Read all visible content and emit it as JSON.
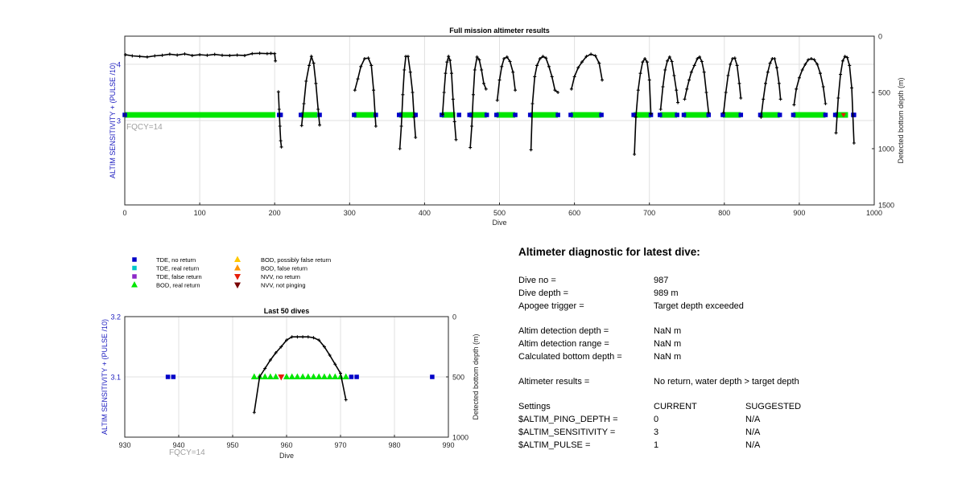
{
  "colors": {
    "axis": "#262626",
    "grid": "#e0e0e0",
    "left_axis_label": "#2020c0",
    "fqcy_label": "#a0a0a0",
    "trace": "#000000",
    "tde_no_return": "#0000c8",
    "tde_real_return": "#00c8c8",
    "tde_false_return": "#8c28c8",
    "bod_real_return": "#00e600",
    "bod_possibly_false": "#ffc800",
    "bod_false_return": "#ff9600",
    "nvv_no_return": "#e61e0a",
    "nvv_not_pinging": "#780000"
  },
  "chart_data": [
    {
      "type": "scatter",
      "title": "Full mission altimeter results",
      "xlabel": "Dive",
      "ylabel_left": "ALTIM SENSITIVITY + (PULSE /10)",
      "ylabel_right": "Detected bottom depth (m)",
      "annotation": "FQCY=14",
      "xlim": [
        0,
        1000
      ],
      "xticks": [
        0,
        100,
        200,
        300,
        400,
        500,
        600,
        700,
        800,
        900,
        1000
      ],
      "ylim_left": [
        1.5,
        4.5
      ],
      "yticks_left": [
        3,
        4
      ],
      "ylim_right": [
        1500,
        0
      ],
      "yticks_right": [
        0,
        500,
        1000,
        1500
      ],
      "grid": true,
      "marker_level": 3.1,
      "green_segments": [
        [
          0,
          201
        ],
        [
          235,
          257
        ],
        [
          306,
          335
        ],
        [
          366,
          388
        ],
        [
          423,
          441
        ],
        [
          460,
          483
        ],
        [
          496,
          521
        ],
        [
          541,
          578
        ],
        [
          595,
          636
        ],
        [
          679,
          702
        ],
        [
          714,
          737
        ],
        [
          746,
          779
        ],
        [
          798,
          822
        ],
        [
          848,
          874
        ],
        [
          892,
          935
        ],
        [
          948,
          965
        ]
      ],
      "blue_dives": [
        0,
        206,
        208,
        235,
        260,
        306,
        335,
        366,
        388,
        423,
        446,
        460,
        483,
        496,
        521,
        541,
        578,
        595,
        636,
        679,
        702,
        714,
        737,
        746,
        779,
        798,
        822,
        848,
        874,
        892,
        935,
        948,
        972,
        973
      ],
      "red_dives": [
        959
      ],
      "segments": [
        {
          "dive": [
            1,
            10,
            20,
            30,
            40,
            50,
            60,
            70,
            80,
            90,
            100,
            110,
            120,
            130,
            140,
            150,
            160,
            170,
            180,
            190,
            195,
            200,
            201
          ],
          "depth": [
            165,
            175,
            180,
            185,
            175,
            170,
            160,
            168,
            158,
            172,
            165,
            170,
            162,
            170,
            172,
            168,
            172,
            155,
            152,
            155,
            153,
            155,
            220
          ]
        },
        {
          "dive": [
            205,
            206,
            207,
            208,
            209
          ],
          "depth": [
            495,
            650,
            800,
            930,
            985
          ]
        },
        {
          "dive": [
            236,
            239,
            242,
            246,
            249,
            252,
            255,
            258,
            260
          ],
          "depth": [
            795,
            600,
            400,
            260,
            180,
            240,
            420,
            650,
            790
          ]
        },
        {
          "dive": [
            307,
            311,
            315,
            320,
            325,
            329,
            332,
            335
          ],
          "depth": [
            480,
            380,
            270,
            200,
            195,
            260,
            480,
            800
          ]
        },
        {
          "dive": [
            367,
            369,
            371,
            373,
            375,
            378,
            381,
            384,
            386,
            388
          ],
          "depth": [
            1000,
            800,
            520,
            300,
            180,
            180,
            320,
            500,
            720,
            900
          ]
        },
        {
          "dive": [
            424,
            426,
            428,
            430,
            432,
            434,
            436,
            438,
            440,
            442
          ],
          "depth": [
            695,
            500,
            330,
            230,
            180,
            215,
            330,
            560,
            760,
            920
          ]
        },
        {
          "dive": [
            461,
            463,
            465,
            467,
            470,
            473,
            476,
            479,
            482
          ],
          "depth": [
            990,
            800,
            520,
            300,
            185,
            210,
            300,
            420,
            470
          ]
        },
        {
          "dive": [
            497,
            500,
            503,
            506,
            510,
            514,
            518,
            521
          ],
          "depth": [
            570,
            390,
            270,
            200,
            185,
            225,
            320,
            480
          ]
        },
        {
          "dive": [
            542,
            544,
            547,
            550,
            554,
            558,
            562,
            566,
            570,
            574,
            578
          ],
          "depth": [
            1010,
            600,
            360,
            260,
            200,
            180,
            195,
            270,
            360,
            480,
            500
          ]
        },
        {
          "dive": [
            596,
            600,
            605,
            610,
            616,
            622,
            628,
            633,
            637
          ],
          "depth": [
            470,
            360,
            280,
            230,
            180,
            160,
            175,
            240,
            390
          ]
        },
        {
          "dive": [
            680,
            682,
            685,
            688,
            691,
            694,
            697,
            700,
            702
          ],
          "depth": [
            1050,
            720,
            480,
            330,
            230,
            200,
            230,
            390,
            690
          ]
        },
        {
          "dive": [
            715,
            718,
            721,
            724,
            727,
            730,
            733,
            736,
            738
          ],
          "depth": [
            650,
            450,
            300,
            220,
            185,
            225,
            350,
            480,
            590
          ]
        },
        {
          "dive": [
            747,
            750,
            753,
            756,
            760,
            764,
            767,
            770,
            773,
            776,
            779
          ],
          "depth": [
            560,
            470,
            390,
            320,
            260,
            200,
            185,
            225,
            320,
            500,
            680
          ]
        },
        {
          "dive": [
            799,
            802,
            805,
            808,
            811,
            814,
            817,
            820,
            822
          ],
          "depth": [
            680,
            500,
            350,
            250,
            200,
            195,
            260,
            420,
            550
          ]
        },
        {
          "dive": [
            849,
            852,
            855,
            858,
            861,
            864,
            867,
            870,
            873,
            875
          ],
          "depth": [
            720,
            560,
            420,
            320,
            240,
            200,
            200,
            280,
            420,
            560
          ]
        },
        {
          "dive": [
            893,
            896,
            900,
            904,
            908,
            912,
            916,
            920,
            924,
            928,
            932,
            935
          ],
          "depth": [
            610,
            470,
            370,
            300,
            250,
            210,
            200,
            210,
            250,
            330,
            450,
            600
          ]
        },
        {
          "dive": [
            949,
            952,
            955,
            958,
            961,
            964,
            967,
            970,
            973
          ],
          "depth": [
            860,
            550,
            340,
            220,
            180,
            190,
            260,
            460,
            950
          ]
        }
      ]
    },
    {
      "type": "scatter",
      "title": "Last 50 dives",
      "xlabel": "Dive",
      "ylabel_left": "ALTIM SENSITIVITY + (PULSE /10)",
      "ylabel_right": "Detected bottom depth (m)",
      "annotation": "FQCY=14",
      "xlim": [
        930,
        990
      ],
      "xticks": [
        930,
        940,
        950,
        960,
        970,
        980,
        990
      ],
      "ylim_left": [
        3.0,
        3.2
      ],
      "yticks_left": [
        3.1,
        3.2
      ],
      "ylim_right": [
        1000,
        0
      ],
      "yticks_right": [
        0,
        500,
        1000
      ],
      "grid": true,
      "marker_level": 3.1,
      "blue_dives": [
        938,
        939,
        972,
        973,
        987
      ],
      "green_dives": [
        954,
        955,
        956,
        957,
        958,
        960,
        961,
        962,
        963,
        964,
        965,
        966,
        967,
        968,
        969,
        970,
        971
      ],
      "red_dives": [
        959
      ],
      "curve": {
        "dive": [
          954,
          955,
          956,
          957,
          958,
          959,
          960,
          961,
          962,
          963,
          964,
          965,
          966,
          967,
          968,
          969,
          970,
          971
        ],
        "depth": [
          795,
          500,
          430,
          360,
          300,
          250,
          195,
          168,
          168,
          168,
          168,
          175,
          195,
          250,
          320,
          395,
          470,
          690
        ]
      }
    }
  ],
  "legend": {
    "col1": [
      {
        "label": "TDE, no return",
        "marker": "square",
        "color": "#0000c8"
      },
      {
        "label": "TDE, real return",
        "marker": "square",
        "color": "#00c8c8"
      },
      {
        "label": "TDE, false return",
        "marker": "square",
        "color": "#8c28c8"
      },
      {
        "label": "BOD, real return",
        "marker": "triangle-up",
        "color": "#00e600"
      }
    ],
    "col2": [
      {
        "label": "BOD, possibly false return",
        "marker": "triangle-up",
        "color": "#ffc800"
      },
      {
        "label": "BOD, false return",
        "marker": "triangle-up",
        "color": "#ff9600"
      },
      {
        "label": "NVV, no return",
        "marker": "triangle-down",
        "color": "#e61e0a"
      },
      {
        "label": "NVV, not pinging",
        "marker": "triangle-down",
        "color": "#780000"
      }
    ]
  },
  "diagnostic": {
    "title": "Altimeter diagnostic for latest dive:",
    "dive_no_label": "Dive no =",
    "dive_no": "987",
    "dive_depth_label": "Dive depth =",
    "dive_depth": "989 m",
    "apogee_label": "Apogee trigger =",
    "apogee": "Target depth exceeded",
    "detection_depth_label": "Altim detection depth =",
    "detection_depth": "NaN m",
    "detection_range_label": "Altim detection range =",
    "detection_range": "NaN m",
    "bottom_depth_label": "Calculated bottom depth =",
    "bottom_depth": "NaN m",
    "results_label": "Altimeter results =",
    "results": "No return, water depth > target depth",
    "settings_label": "Settings",
    "current_header": "CURRENT",
    "suggested_header": "SUGGESTED",
    "ping_depth_label": "$ALTIM_PING_DEPTH =",
    "ping_depth_current": "0",
    "ping_depth_suggested": "N/A",
    "sensitivity_label": "$ALTIM_SENSITIVITY =",
    "sensitivity_current": "3",
    "sensitivity_suggested": "N/A",
    "pulse_label": "$ALTIM_PULSE =",
    "pulse_current": "1",
    "pulse_suggested": "N/A"
  }
}
